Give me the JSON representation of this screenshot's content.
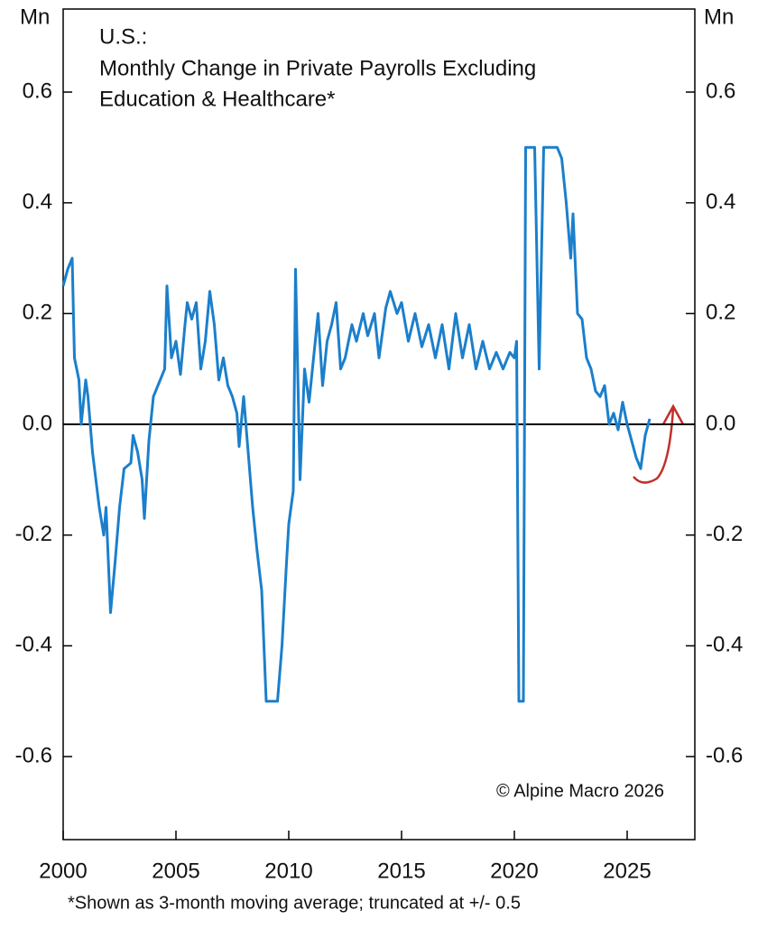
{
  "chart_data": {
    "type": "line",
    "title": [
      "U.S.:",
      "Monthly Change in Private Payrolls Excluding",
      "Education & Healthcare*"
    ],
    "y_label": "Mn",
    "y2_label": "Mn",
    "annotation": "© Alpine Macro 2026",
    "footnote": "*Shown as 3-month moving average; truncated at +/- 0.5",
    "xlim": [
      2000,
      2028
    ],
    "xticks": [
      2000,
      2005,
      2010,
      2015,
      2020,
      2025
    ],
    "ylim": [
      -0.75,
      0.75
    ],
    "yticks": [
      -0.6,
      -0.4,
      -0.2,
      {
        "value": 0,
        "label": "0.0"
      },
      0.2,
      0.4,
      0.6
    ],
    "y2lim": [
      -0.75,
      0.75
    ],
    "y2ticks": [
      -0.6,
      -0.4,
      -0.2,
      {
        "value": 0,
        "label": "0.0"
      },
      0.2,
      0.4,
      0.6
    ],
    "series": [
      {
        "name": "Private payrolls ex. education & healthcare",
        "color": "#1b7fcb",
        "x": [
          2000.0,
          2000.2,
          2000.4,
          2000.5,
          2000.7,
          2000.8,
          2001.0,
          2001.1,
          2001.3,
          2001.6,
          2001.8,
          2001.9,
          2002.1,
          2002.3,
          2002.5,
          2002.7,
          2003.0,
          2003.1,
          2003.3,
          2003.5,
          2003.6,
          2003.8,
          2004.0,
          2004.2,
          2004.5,
          2004.6,
          2004.8,
          2005.0,
          2005.2,
          2005.4,
          2005.5,
          2005.7,
          2005.9,
          2006.1,
          2006.3,
          2006.5,
          2006.7,
          2006.9,
          2007.1,
          2007.3,
          2007.5,
          2007.7,
          2007.8,
          2008.0,
          2008.2,
          2008.4,
          2008.6,
          2008.8,
          2009.0,
          2009.5,
          2009.7,
          2009.9,
          2010.0,
          2010.2,
          2010.3,
          2010.5,
          2010.7,
          2010.9,
          2011.1,
          2011.3,
          2011.5,
          2011.7,
          2011.9,
          2012.1,
          2012.3,
          2012.5,
          2012.8,
          2013.0,
          2013.3,
          2013.5,
          2013.8,
          2014.0,
          2014.3,
          2014.5,
          2014.8,
          2015.0,
          2015.3,
          2015.6,
          2015.9,
          2016.2,
          2016.5,
          2016.8,
          2017.1,
          2017.4,
          2017.7,
          2018.0,
          2018.3,
          2018.6,
          2018.9,
          2019.2,
          2019.5,
          2019.8,
          2020.0,
          2020.1,
          2020.2,
          2020.4,
          2020.5,
          2020.9,
          2021.1,
          2021.3,
          2021.9,
          2022.1,
          2022.3,
          2022.5,
          2022.6,
          2022.8,
          2023.0,
          2023.2,
          2023.4,
          2023.6,
          2023.8,
          2024.0,
          2024.2,
          2024.4,
          2024.6,
          2024.8,
          2025.0,
          2025.2,
          2025.4,
          2025.6,
          2025.8,
          2026.0
        ],
        "values": [
          0.25,
          0.28,
          0.3,
          0.12,
          0.08,
          0.0,
          0.08,
          0.05,
          -0.05,
          -0.15,
          -0.2,
          -0.15,
          -0.34,
          -0.25,
          -0.15,
          -0.08,
          -0.07,
          -0.02,
          -0.05,
          -0.1,
          -0.17,
          -0.03,
          0.05,
          0.07,
          0.1,
          0.25,
          0.12,
          0.15,
          0.09,
          0.18,
          0.22,
          0.19,
          0.22,
          0.1,
          0.15,
          0.24,
          0.18,
          0.08,
          0.12,
          0.07,
          0.05,
          0.02,
          -0.04,
          0.05,
          -0.05,
          -0.15,
          -0.23,
          -0.3,
          -0.5,
          -0.5,
          -0.4,
          -0.25,
          -0.18,
          -0.12,
          0.28,
          -0.1,
          0.1,
          0.04,
          0.12,
          0.2,
          0.07,
          0.15,
          0.18,
          0.22,
          0.1,
          0.12,
          0.18,
          0.15,
          0.2,
          0.16,
          0.2,
          0.12,
          0.21,
          0.24,
          0.2,
          0.22,
          0.15,
          0.2,
          0.14,
          0.18,
          0.12,
          0.18,
          0.1,
          0.2,
          0.12,
          0.18,
          0.1,
          0.15,
          0.1,
          0.13,
          0.1,
          0.13,
          0.12,
          0.15,
          -0.5,
          -0.5,
          0.5,
          0.5,
          0.1,
          0.5,
          0.5,
          0.48,
          0.4,
          0.3,
          0.38,
          0.2,
          0.19,
          0.12,
          0.1,
          0.06,
          0.05,
          0.07,
          0.0,
          0.02,
          -0.01,
          0.04,
          0.0,
          -0.03,
          -0.06,
          -0.08,
          -0.02,
          0.01
        ]
      }
    ]
  }
}
